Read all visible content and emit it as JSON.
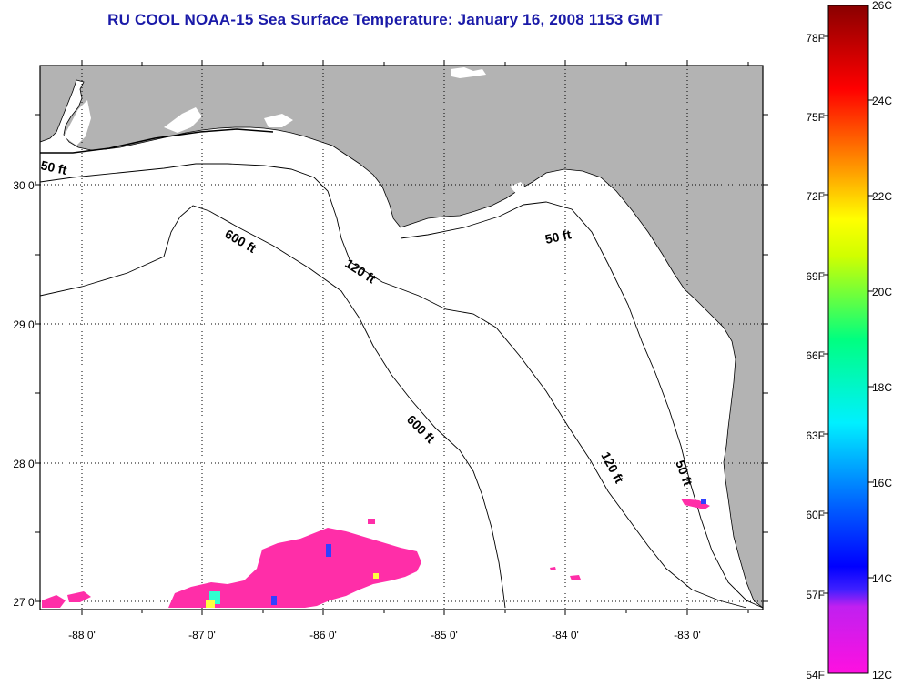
{
  "title": "RU COOL  NOAA-15  Sea Surface Temperature:  January 16, 2008 1153 GMT",
  "map": {
    "land_color": "#b3b3b3",
    "sea_color": "#ffffff",
    "lon_ticks": [
      "-88 0'",
      "-87 0'",
      "-86 0'",
      "-85 0'",
      "-84 0'",
      "-83 0'"
    ],
    "lat_ticks": [
      "30 0'",
      "29 0'",
      "28 0'",
      "27 0'"
    ],
    "isobath_labels": [
      {
        "id": "50ft-west",
        "text": "50 ft"
      },
      {
        "id": "600ft-north",
        "text": "600 ft"
      },
      {
        "id": "120ft-north",
        "text": "120 ft"
      },
      {
        "id": "50ft-north",
        "text": "50 ft"
      },
      {
        "id": "600ft-south",
        "text": "600 ft"
      },
      {
        "id": "120ft-south",
        "text": "120 ft"
      },
      {
        "id": "50ft-south",
        "text": "50 ft"
      }
    ],
    "sst_patch_color": "#ff2ea8"
  },
  "colorbar": {
    "f_labels": [
      "78F",
      "75F",
      "72F",
      "69F",
      "66F",
      "63F",
      "60F",
      "57F",
      "54F"
    ],
    "c_labels": [
      "26C",
      "24C",
      "22C",
      "20C",
      "18C",
      "16C",
      "14C",
      "12C"
    ]
  }
}
